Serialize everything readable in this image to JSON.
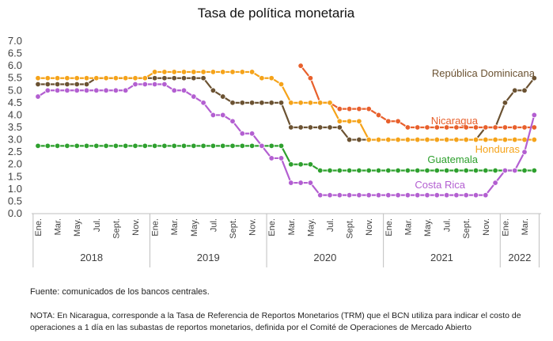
{
  "chart_data": {
    "type": "line",
    "title": "Tasa de política monetaria",
    "categories": [
      "Ene.",
      null,
      "Mar.",
      null,
      "May.",
      null,
      "Jul.",
      null,
      "Sept.",
      null,
      "Nov.",
      null,
      "Ene.",
      null,
      "Mar.",
      null,
      "May.",
      null,
      "Jul.",
      null,
      "Sept.",
      null,
      "Nov.",
      null,
      "Ene.",
      null,
      "Mar.",
      null,
      "May.",
      null,
      "Jul.",
      null,
      "Sept.",
      null,
      "Nov.",
      null,
      "Ene.",
      null,
      "Mar.",
      null,
      "May.",
      null,
      "Jul.",
      null,
      "Sept.",
      null,
      "Nov.",
      null,
      "Ene.",
      null,
      "Mar.",
      null
    ],
    "x_groups": [
      "2018",
      "2019",
      "2020",
      "2021",
      "2022"
    ],
    "ylim": [
      0,
      7
    ],
    "yticks": [
      {
        "value": 0,
        "label": "0.0"
      },
      0.5,
      {
        "value": 1,
        "label": "1.0"
      },
      1.5,
      {
        "value": 2,
        "label": "2.0"
      },
      2.5,
      {
        "value": 3,
        "label": "3.0"
      },
      3.5,
      {
        "value": 4,
        "label": "4.0"
      },
      4.5,
      {
        "value": 5,
        "label": "5.0"
      },
      5.5,
      {
        "value": 6,
        "label": "6.0"
      },
      6.5,
      {
        "value": 7,
        "label": "7.0"
      }
    ],
    "series": [
      {
        "name": "República Dominicana",
        "color": "#6b5232",
        "values": [
          5.25,
          5.25,
          5.25,
          5.25,
          5.25,
          5.25,
          5.5,
          5.5,
          5.5,
          5.5,
          5.5,
          5.5,
          5.5,
          5.5,
          5.5,
          5.5,
          5.5,
          5.5,
          5.0,
          4.75,
          4.5,
          4.5,
          4.5,
          4.5,
          4.5,
          4.5,
          3.5,
          3.5,
          3.5,
          3.5,
          3.5,
          3.5,
          3.0,
          3.0,
          3.0,
          3.0,
          3.0,
          3.0,
          3.0,
          3.0,
          3.0,
          3.0,
          3.0,
          3.0,
          3.0,
          3.0,
          3.5,
          3.5,
          4.5,
          5.0,
          5.0,
          5.5
        ]
      },
      {
        "name": "Nicaragua",
        "color": "#e8602c",
        "values": [
          null,
          null,
          null,
          null,
          null,
          null,
          null,
          null,
          null,
          null,
          null,
          null,
          null,
          null,
          null,
          null,
          null,
          null,
          null,
          null,
          null,
          null,
          null,
          null,
          null,
          null,
          null,
          6.0,
          5.5,
          4.5,
          4.5,
          4.25,
          4.25,
          4.25,
          4.25,
          4.0,
          3.75,
          3.75,
          3.5,
          3.5,
          3.5,
          3.5,
          3.5,
          3.5,
          3.5,
          3.5,
          3.5,
          3.5,
          3.5,
          3.5,
          3.5,
          3.5
        ]
      },
      {
        "name": "Honduras",
        "color": "#f5a31a",
        "values": [
          5.5,
          5.5,
          5.5,
          5.5,
          5.5,
          5.5,
          5.5,
          5.5,
          5.5,
          5.5,
          5.5,
          5.5,
          5.75,
          5.75,
          5.75,
          5.75,
          5.75,
          5.75,
          5.75,
          5.75,
          5.75,
          5.75,
          5.75,
          5.5,
          5.5,
          5.25,
          4.5,
          4.5,
          4.5,
          4.5,
          4.5,
          3.75,
          3.75,
          3.75,
          3.0,
          3.0,
          3.0,
          3.0,
          3.0,
          3.0,
          3.0,
          3.0,
          3.0,
          3.0,
          3.0,
          3.0,
          3.0,
          3.0,
          3.0,
          3.0,
          3.0,
          3.0
        ]
      },
      {
        "name": "Guatemala",
        "color": "#2ea02e",
        "values": [
          2.75,
          2.75,
          2.75,
          2.75,
          2.75,
          2.75,
          2.75,
          2.75,
          2.75,
          2.75,
          2.75,
          2.75,
          2.75,
          2.75,
          2.75,
          2.75,
          2.75,
          2.75,
          2.75,
          2.75,
          2.75,
          2.75,
          2.75,
          2.75,
          2.75,
          2.75,
          2.0,
          2.0,
          2.0,
          1.75,
          1.75,
          1.75,
          1.75,
          1.75,
          1.75,
          1.75,
          1.75,
          1.75,
          1.75,
          1.75,
          1.75,
          1.75,
          1.75,
          1.75,
          1.75,
          1.75,
          1.75,
          1.75,
          1.75,
          1.75,
          1.75,
          1.75
        ]
      },
      {
        "name": "Costa Rica",
        "color": "#b35fd1",
        "values": [
          4.75,
          5.0,
          5.0,
          5.0,
          5.0,
          5.0,
          5.0,
          5.0,
          5.0,
          5.0,
          5.25,
          5.25,
          5.25,
          5.25,
          5.0,
          5.0,
          4.75,
          4.5,
          4.0,
          4.0,
          3.75,
          3.25,
          3.25,
          2.75,
          2.25,
          2.25,
          1.25,
          1.25,
          1.25,
          0.75,
          0.75,
          0.75,
          0.75,
          0.75,
          0.75,
          0.75,
          0.75,
          0.75,
          0.75,
          0.75,
          0.75,
          0.75,
          0.75,
          0.75,
          0.75,
          0.75,
          0.75,
          1.25,
          1.75,
          1.75,
          2.5,
          4.0
        ]
      }
    ],
    "source": "Fuente: comunicados de los bancos centrales.",
    "note": "NOTA: En Nicaragua, corresponde a la Tasa de Referencia de Reportos Monetarios (TRM) que el BCN utiliza para indicar el costo de operaciones a 1 día en las subastas de reportos monetarios, definida por el Comité de Operaciones de Mercado Abierto"
  }
}
